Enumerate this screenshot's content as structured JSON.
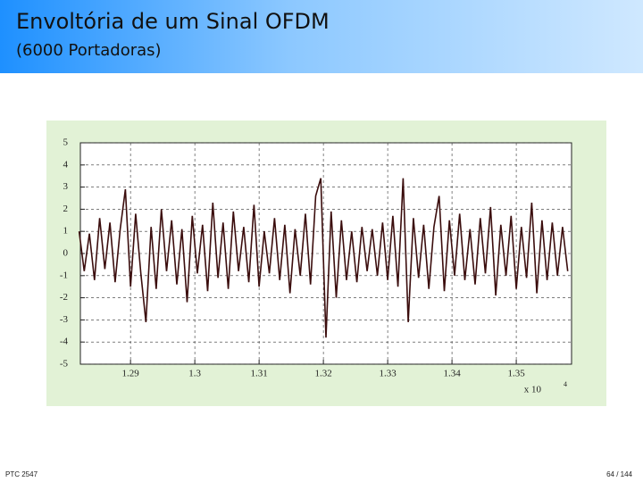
{
  "header": {
    "title": "Envoltória de um Sinal OFDM",
    "subtitle": "(6000 Portadoras)"
  },
  "footer": {
    "left": "PTC 2547",
    "right": "64 / 144"
  },
  "chart_data": {
    "type": "line",
    "x_axis_multiplier": "x 10",
    "x_axis_exponent": "4",
    "xlim": [
      1.2822,
      1.3586
    ],
    "ylim": [
      -5,
      5
    ],
    "xticks": [
      1.29,
      1.3,
      1.31,
      1.32,
      1.33,
      1.34,
      1.35
    ],
    "yticks": [
      -5,
      -4,
      -3,
      -2,
      -1,
      0,
      1,
      2,
      3,
      4,
      5
    ],
    "grid": true,
    "x": [
      1.282,
      1.2828,
      1.2836,
      1.2844,
      1.2852,
      1.286,
      1.2868,
      1.2876,
      1.2884,
      1.2892,
      1.29,
      1.2908,
      1.2916,
      1.2924,
      1.2932,
      1.294,
      1.2948,
      1.2956,
      1.2964,
      1.2972,
      1.298,
      1.2988,
      1.2996,
      1.3004,
      1.3012,
      1.302,
      1.3028,
      1.3036,
      1.3044,
      1.3052,
      1.306,
      1.3068,
      1.3076,
      1.3084,
      1.3092,
      1.31,
      1.3108,
      1.3116,
      1.3124,
      1.3132,
      1.314,
      1.3148,
      1.3156,
      1.3164,
      1.3172,
      1.318,
      1.3188,
      1.3196,
      1.3204,
      1.3212,
      1.322,
      1.3228,
      1.3236,
      1.3244,
      1.3252,
      1.326,
      1.3268,
      1.3276,
      1.3284,
      1.3292,
      1.33,
      1.3308,
      1.3316,
      1.3324,
      1.3332,
      1.334,
      1.3348,
      1.3356,
      1.3364,
      1.3372,
      1.338,
      1.3388,
      1.3396,
      1.3404,
      1.3412,
      1.342,
      1.3428,
      1.3436,
      1.3444,
      1.3452,
      1.346,
      1.3468,
      1.3476,
      1.3484,
      1.3492,
      1.35,
      1.3508,
      1.3516,
      1.3524,
      1.3532,
      1.354,
      1.3548,
      1.3556,
      1.3564,
      1.3572,
      1.358
    ],
    "series": [
      {
        "color": "#3b0d0d",
        "values": [
          1.0,
          -0.8,
          0.9,
          -1.2,
          1.6,
          -0.7,
          1.4,
          -1.3,
          1.1,
          2.9,
          -1.5,
          1.8,
          -0.9,
          -3.1,
          1.2,
          -1.6,
          2.0,
          -0.8,
          1.5,
          -1.4,
          1.1,
          -2.2,
          1.7,
          -0.9,
          1.3,
          -1.7,
          2.3,
          -1.1,
          1.4,
          -1.6,
          1.9,
          -0.8,
          1.2,
          -1.3,
          2.2,
          -1.5,
          1.0,
          -0.9,
          1.6,
          -1.2,
          1.3,
          -1.8,
          1.1,
          -1.0,
          1.8,
          -1.4,
          2.6,
          3.4,
          -3.8,
          1.9,
          -2.0,
          1.5,
          -1.2,
          1.0,
          -1.3,
          1.2,
          -0.8,
          1.1,
          -1.0,
          1.4,
          -1.2,
          1.7,
          -1.5,
          3.4,
          -3.1,
          1.6,
          -1.1,
          1.3,
          -1.6,
          1.2,
          2.6,
          -1.7,
          1.5,
          -1.0,
          1.8,
          -1.2,
          1.1,
          -1.4,
          1.6,
          -0.9,
          2.1,
          -1.9,
          1.3,
          -1.0,
          1.7,
          -1.6,
          1.2,
          -1.1,
          2.3,
          -1.8,
          1.5,
          -1.2,
          1.4,
          -1.0,
          1.2,
          -0.8
        ]
      }
    ]
  }
}
